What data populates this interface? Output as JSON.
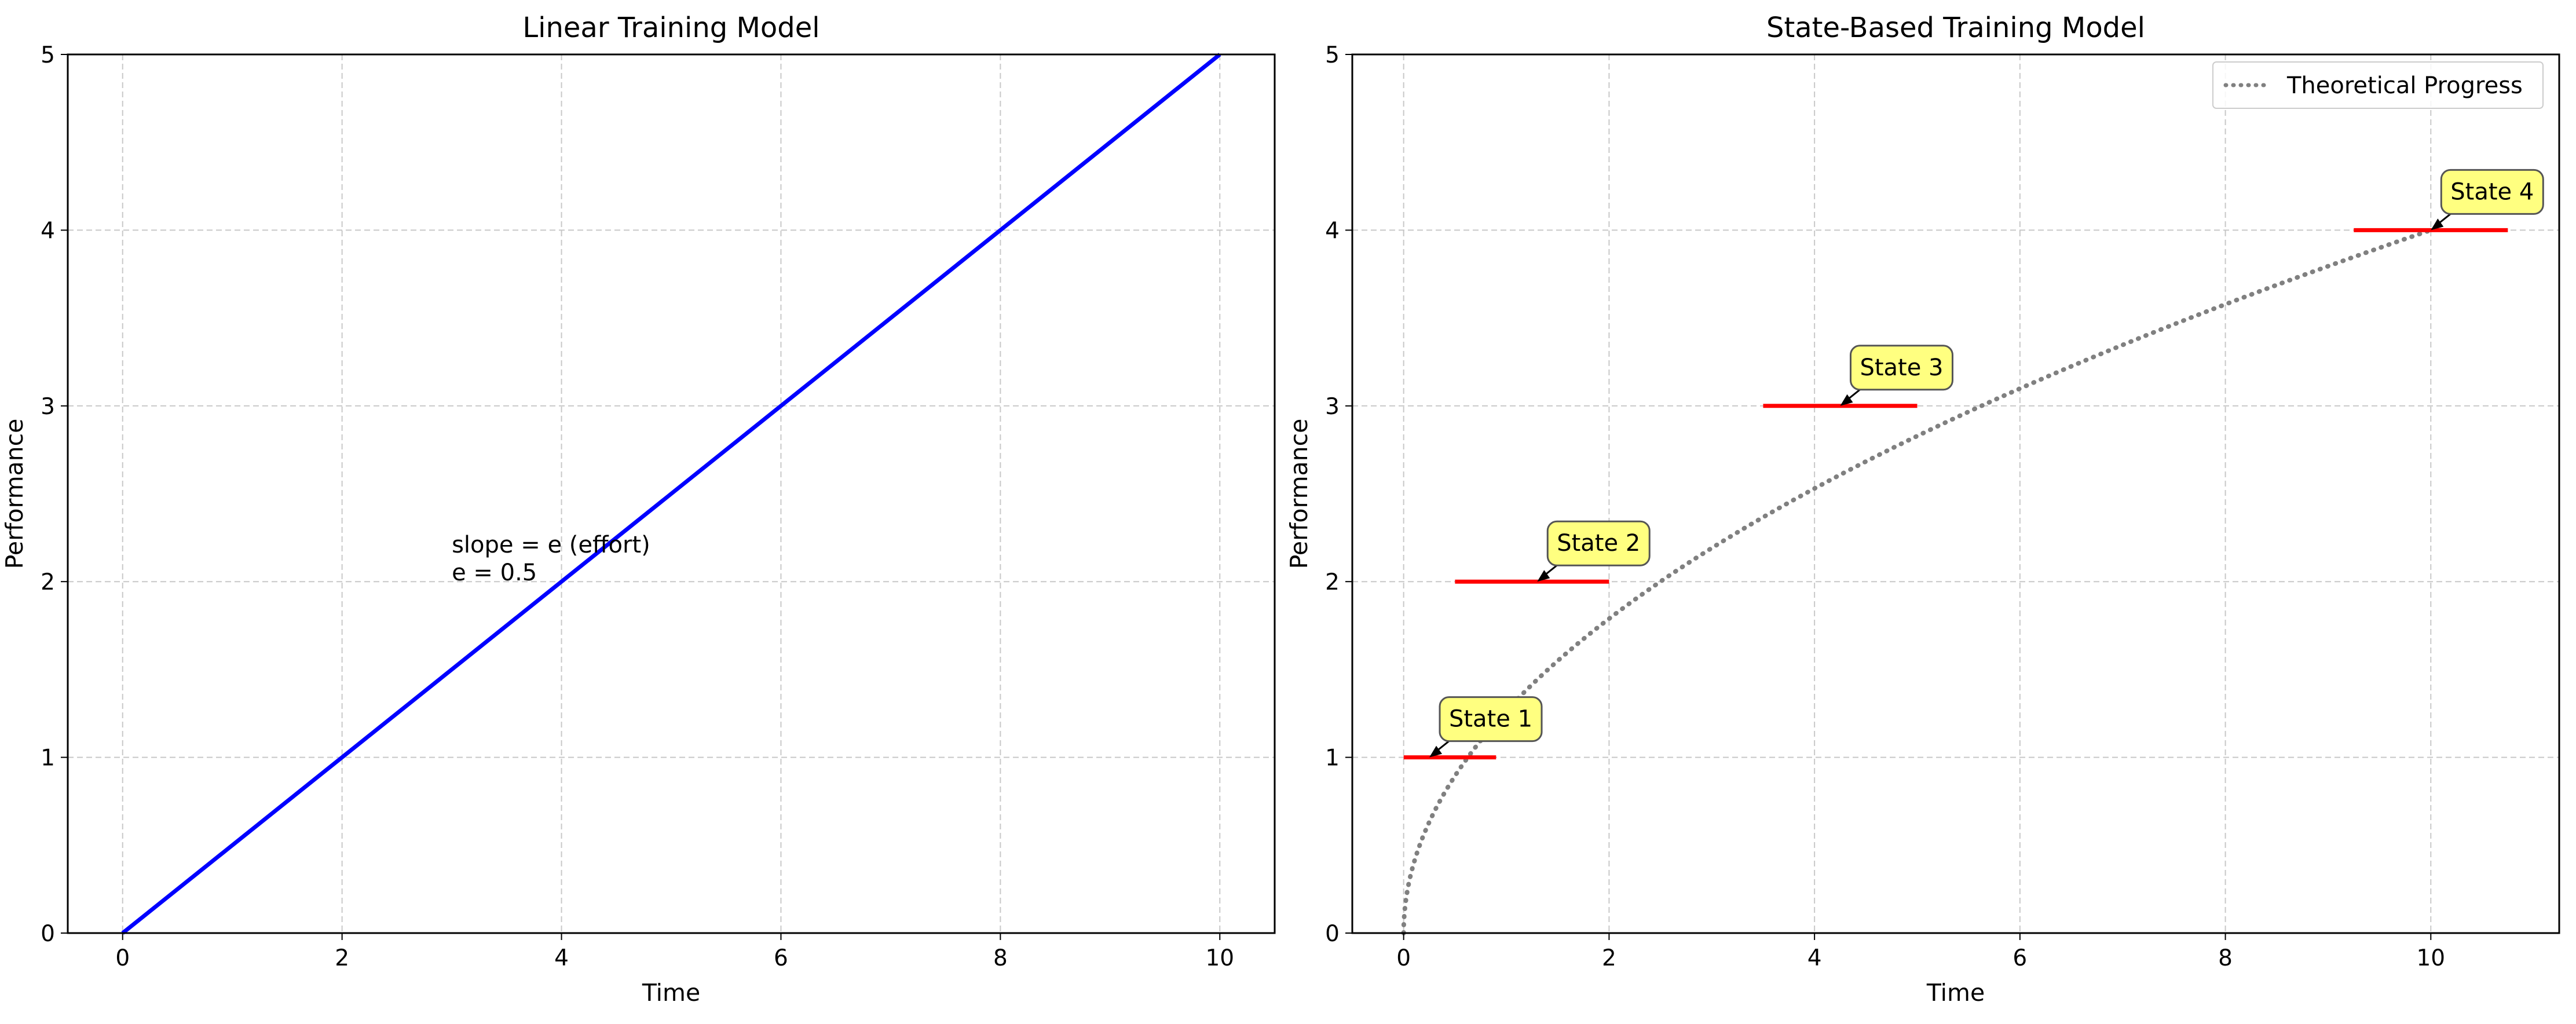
{
  "chart_data": [
    {
      "type": "line",
      "title": "Linear Training Model",
      "xlabel": "Time",
      "ylabel": "Performance",
      "xlim": [
        -0.5,
        10.5
      ],
      "ylim": [
        0,
        5
      ],
      "xticks": [
        "0",
        "2",
        "4",
        "6",
        "8",
        "10"
      ],
      "yticks": [
        "0",
        "1",
        "2",
        "3",
        "4",
        "5"
      ],
      "grid": true,
      "series": [
        {
          "x": [
            0,
            10
          ],
          "y": [
            0,
            5
          ],
          "color": "#0000ff",
          "style": "solid"
        }
      ],
      "annotations": [
        {
          "lines": [
            "slope = e (effort)",
            "e = 0.5"
          ],
          "x": 3,
          "y": 2
        }
      ]
    },
    {
      "type": "line",
      "title": "State-Based Training Model",
      "xlabel": "Time",
      "ylabel": "Performance",
      "xlim": [
        -0.5,
        11.25
      ],
      "ylim": [
        0,
        5
      ],
      "xticks": [
        "0",
        "2",
        "4",
        "6",
        "8",
        "10"
      ],
      "yticks": [
        "0",
        "1",
        "2",
        "3",
        "4",
        "5"
      ],
      "grid": true,
      "legend": {
        "placement": "top-right",
        "entries": [
          "Theoretical Progress"
        ]
      },
      "series": [
        {
          "name": "Theoretical Progress",
          "function": "sqrt(x)*1.265",
          "x_range": [
            0,
            10
          ],
          "color": "#808080",
          "style": "dotted"
        }
      ],
      "states": [
        {
          "label": "State 1",
          "y": 1,
          "x_start": 0,
          "x_end": 0.9,
          "annotation_at": 0.25
        },
        {
          "label": "State 2",
          "y": 2,
          "x_start": 0.5,
          "x_end": 2.0,
          "annotation_at": 1.3
        },
        {
          "label": "State 3",
          "y": 3,
          "x_start": 3.5,
          "x_end": 5.0,
          "annotation_at": 4.25
        },
        {
          "label": "State 4",
          "y": 4,
          "x_start": 9.25,
          "x_end": 10.75,
          "annotation_at": 10.0
        }
      ],
      "state_color": "#ff0000",
      "annotation_fill": "#ffff80"
    }
  ]
}
